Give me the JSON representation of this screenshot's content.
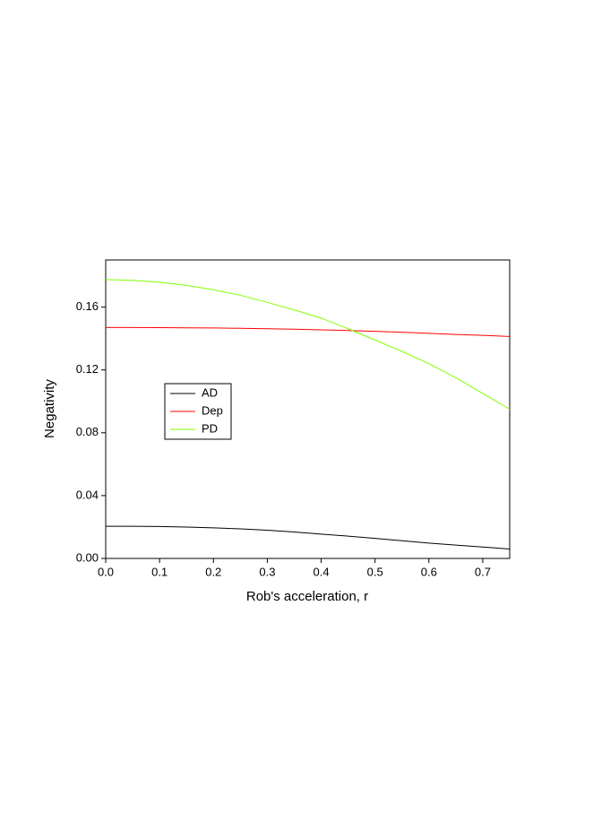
{
  "chart_data": {
    "type": "line",
    "x_label": "Rob's acceleration, r",
    "y_label": "Negativity",
    "x": [
      0,
      0.05,
      0.1,
      0.15,
      0.2,
      0.25,
      0.3,
      0.35,
      0.4,
      0.45,
      0.5,
      0.55,
      0.6,
      0.65,
      0.7,
      0.75
    ],
    "series": [
      {
        "name": "AD",
        "color": "#000000",
        "values": [
          0.0205,
          0.0205,
          0.0203,
          0.02,
          0.0195,
          0.0188,
          0.018,
          0.0168,
          0.0155,
          0.0142,
          0.0128,
          0.0113,
          0.0098,
          0.0085,
          0.0073,
          0.006
        ]
      },
      {
        "name": "Dep",
        "color": "#ff0000",
        "values": [
          0.147,
          0.147,
          0.1469,
          0.1468,
          0.1467,
          0.1465,
          0.1462,
          0.1459,
          0.1455,
          0.1451,
          0.1446,
          0.144,
          0.1433,
          0.1426,
          0.142,
          0.1413
        ]
      },
      {
        "name": "PD",
        "color": "#80ff00",
        "values": [
          0.1775,
          0.177,
          0.1758,
          0.1738,
          0.171,
          0.1675,
          0.163,
          0.1582,
          0.153,
          0.1462,
          0.139,
          0.1318,
          0.124,
          0.115,
          0.105,
          0.095
        ]
      }
    ],
    "xlim": [
      0,
      0.75
    ],
    "ylim": [
      0,
      0.19
    ],
    "xticks": [
      {
        "value": 0,
        "label": "0.0"
      },
      0.1,
      0.2,
      0.3,
      0.4,
      0.5,
      0.6,
      0.7
    ],
    "yticks": [
      {
        "value": 0,
        "label": "0.00"
      },
      0.04,
      0.08,
      0.12,
      0.16
    ],
    "legend": "center left",
    "grid": false
  }
}
